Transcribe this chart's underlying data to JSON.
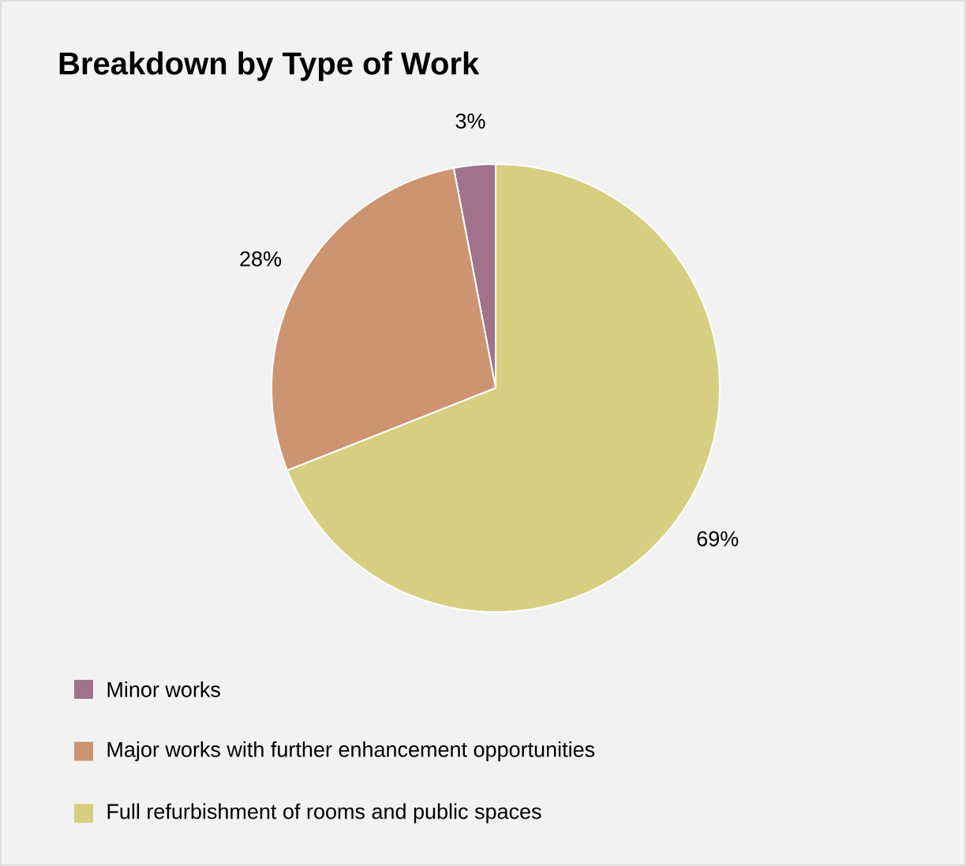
{
  "chart_data": {
    "type": "pie",
    "title": "Breakdown by Type of Work",
    "categories": [
      "Minor works",
      "Major works with further enhancement opportunities",
      "Full refurbishment of rooms and public spaces"
    ],
    "values": [
      3,
      28,
      69
    ],
    "colors": [
      "#a0728c",
      "#cc9470",
      "#d6cf82"
    ],
    "value_labels": [
      "3%",
      "28%",
      "69%"
    ],
    "legend": "bottom"
  }
}
